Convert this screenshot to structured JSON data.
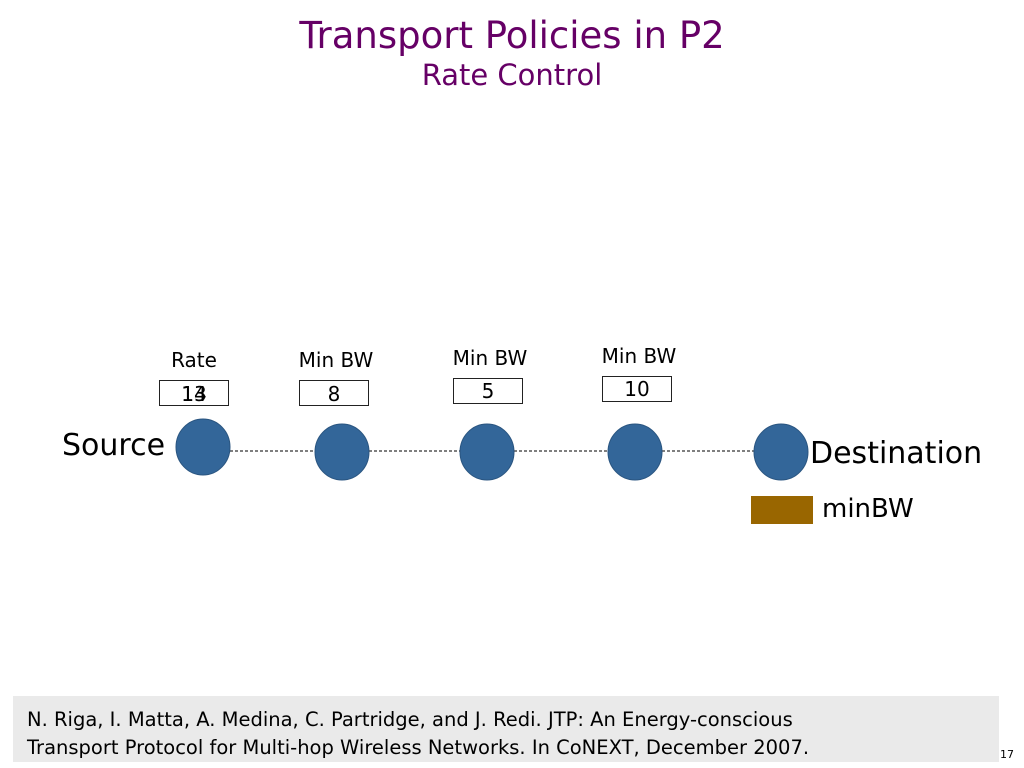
{
  "slide": {
    "title": "Transport Policies in P2",
    "subtitle": "Rate Control",
    "page_number": "17"
  },
  "diagram": {
    "source_label": "Source",
    "destination_label": "Destination",
    "rate_box": {
      "label": "Rate",
      "values": [
        "13",
        "14"
      ]
    },
    "min_bw_boxes": [
      {
        "label": "Min BW",
        "value": "8"
      },
      {
        "label": "Min BW",
        "value": "5"
      },
      {
        "label": "Min BW",
        "value": "10"
      }
    ],
    "node_color": "#336699",
    "link_color": "#555555"
  },
  "legend": {
    "label": "minBW",
    "color": "#996600"
  },
  "citation": {
    "line1": "N. Riga, I. Matta, A. Medina, C. Partridge, and J. Redi. JTP: An Energy-conscious",
    "line2": "Transport Protocol for Multi-hop Wireless Networks. In CoNEXT, December 2007."
  }
}
